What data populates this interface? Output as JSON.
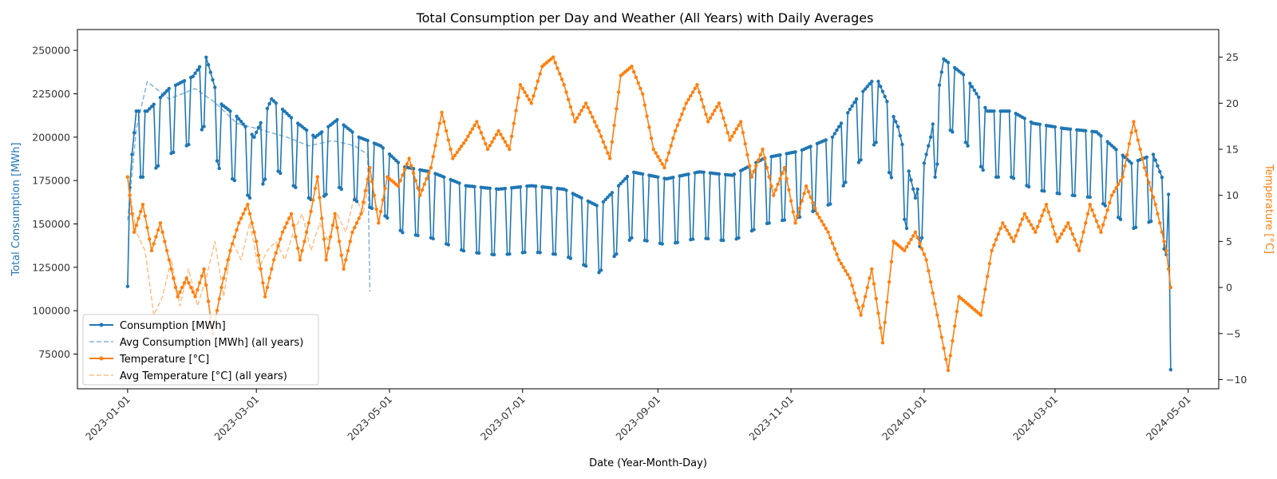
{
  "chart_data": {
    "type": "line",
    "title": "Total Consumption per Day and Weather (All Years) with Daily Averages",
    "xlabel": "Date (Year-Month-Day)",
    "ylabel_left": "Total Consumption [MWh]",
    "ylabel_right": "Temperature [°C]",
    "x_tick_labels": [
      "2023-01-01",
      "2023-03-01",
      "2023-05-01",
      "2023-07-01",
      "2023-09-01",
      "2023-11-01",
      "2024-01-01",
      "2024-03-01",
      "2024-05-01"
    ],
    "y_left_ticks": [
      "75000",
      "100000",
      "125000",
      "150000",
      "175000",
      "200000",
      "225000",
      "250000"
    ],
    "y_right_ticks": [
      "−10",
      "−5",
      "0",
      "5",
      "10",
      "15",
      "20",
      "25"
    ],
    "x_range": [
      "2022-12-09",
      "2024-05-15"
    ],
    "y_left_range": [
      55000,
      262000
    ],
    "y_right_range": [
      -11,
      28
    ],
    "colors": {
      "consumption": "#1f77b4",
      "temperature": "#ff7f0e"
    },
    "legend_position": "lower-left",
    "legend": [
      "Consumption [MWh]",
      "Avg Consumption [MWh] (all years)",
      "Temperature [°C]",
      "Avg Temperature [°C] (all years)"
    ],
    "start_date": "2023-01-01",
    "series": [
      {
        "name": "Consumption [MWh]",
        "axis": "left",
        "style": "solid-marker",
        "color": "#1f77b4",
        "anchors": [
          [
            "2023-01-01",
            152000
          ],
          [
            "2023-01-03",
            190000
          ],
          [
            "2023-01-05",
            215000
          ],
          [
            "2023-01-10",
            215000
          ],
          [
            "2023-01-20",
            228000
          ],
          [
            "2023-01-31",
            235000
          ],
          [
            "2023-02-06",
            246000
          ],
          [
            "2023-02-12",
            220000
          ],
          [
            "2023-02-20",
            212000
          ],
          [
            "2023-02-28",
            200000
          ],
          [
            "2023-03-08",
            222000
          ],
          [
            "2023-03-18",
            210000
          ],
          [
            "2023-03-28",
            200000
          ],
          [
            "2023-04-07",
            210000
          ],
          [
            "2023-04-17",
            200000
          ],
          [
            "2023-04-27",
            195000
          ],
          [
            "2023-05-07",
            183000
          ],
          [
            "2023-05-20",
            180000
          ],
          [
            "2023-06-05",
            172000
          ],
          [
            "2023-06-20",
            170000
          ],
          [
            "2023-07-05",
            172000
          ],
          [
            "2023-07-20",
            170000
          ],
          [
            "2023-08-05",
            160000
          ],
          [
            "2023-08-20",
            180000
          ],
          [
            "2023-09-05",
            176000
          ],
          [
            "2023-09-20",
            180000
          ],
          [
            "2023-10-05",
            178000
          ],
          [
            "2023-10-20",
            188000
          ],
          [
            "2023-11-05",
            192000
          ],
          [
            "2023-11-20",
            200000
          ],
          [
            "2023-12-01",
            222000
          ],
          [
            "2023-12-10",
            235000
          ],
          [
            "2023-12-20",
            206000
          ],
          [
            "2023-12-28",
            165000
          ],
          [
            "2024-01-04",
            200000
          ],
          [
            "2024-01-10",
            245000
          ],
          [
            "2024-01-20",
            235000
          ],
          [
            "2024-01-30",
            215000
          ],
          [
            "2024-02-10",
            215000
          ],
          [
            "2024-02-20",
            208000
          ],
          [
            "2024-03-05",
            205000
          ],
          [
            "2024-03-20",
            203000
          ],
          [
            "2024-04-05",
            185000
          ],
          [
            "2024-04-15",
            190000
          ],
          [
            "2024-04-22",
            167000
          ]
        ],
        "weekend_dip": [
          [
            0,
            8000
          ],
          [
            0,
            8000
          ],
          [
            0,
            12000
          ],
          [
            0,
            6000
          ],
          [
            0,
            4000
          ],
          [
            0,
            10000
          ],
          [
            0,
            0
          ]
        ],
        "end_point": [
          "2024-04-23",
          66000
        ]
      },
      {
        "name": "Avg Consumption [MWh] (all years)",
        "axis": "left",
        "style": "dashed",
        "color": "#1f77b4",
        "alpha": 0.55,
        "anchors": [
          [
            "2023-01-01",
            152000
          ],
          [
            "2023-01-05",
            205000
          ],
          [
            "2023-01-10",
            232000
          ],
          [
            "2023-01-20",
            222000
          ],
          [
            "2023-02-01",
            228000
          ],
          [
            "2023-02-10",
            220000
          ],
          [
            "2023-02-20",
            208000
          ],
          [
            "2023-03-01",
            205000
          ],
          [
            "2023-03-15",
            200000
          ],
          [
            "2023-03-25",
            195000
          ],
          [
            "2023-04-05",
            198000
          ],
          [
            "2023-04-15",
            195000
          ],
          [
            "2023-04-21",
            190000
          ]
        ],
        "end_point": [
          "2023-04-22",
          111000
        ]
      },
      {
        "name": "Temperature [°C]",
        "axis": "right",
        "style": "solid-marker",
        "color": "#ff7f0e",
        "points": [
          [
            "2023-01-01",
            12
          ],
          [
            "2023-01-04",
            6
          ],
          [
            "2023-01-08",
            9
          ],
          [
            "2023-01-12",
            4
          ],
          [
            "2023-01-16",
            7
          ],
          [
            "2023-01-20",
            3
          ],
          [
            "2023-01-24",
            -1
          ],
          [
            "2023-01-28",
            1
          ],
          [
            "2023-02-01",
            -1
          ],
          [
            "2023-02-05",
            2
          ],
          [
            "2023-02-09",
            -5
          ],
          [
            "2023-02-13",
            0
          ],
          [
            "2023-02-17",
            4
          ],
          [
            "2023-02-21",
            7
          ],
          [
            "2023-02-25",
            9
          ],
          [
            "2023-03-01",
            5
          ],
          [
            "2023-03-05",
            -1
          ],
          [
            "2023-03-09",
            3
          ],
          [
            "2023-03-13",
            6
          ],
          [
            "2023-03-17",
            8
          ],
          [
            "2023-03-21",
            3
          ],
          [
            "2023-03-25",
            7
          ],
          [
            "2023-03-29",
            12
          ],
          [
            "2023-04-02",
            3
          ],
          [
            "2023-04-06",
            8
          ],
          [
            "2023-04-10",
            2
          ],
          [
            "2023-04-14",
            6
          ],
          [
            "2023-04-18",
            8
          ],
          [
            "2023-04-22",
            13
          ],
          [
            "2023-04-26",
            7
          ],
          [
            "2023-04-30",
            12
          ],
          [
            "2023-05-05",
            11
          ],
          [
            "2023-05-10",
            14
          ],
          [
            "2023-05-15",
            10
          ],
          [
            "2023-05-20",
            13
          ],
          [
            "2023-05-25",
            19
          ],
          [
            "2023-05-30",
            14
          ],
          [
            "2023-06-05",
            16
          ],
          [
            "2023-06-10",
            18
          ],
          [
            "2023-06-15",
            15
          ],
          [
            "2023-06-20",
            17
          ],
          [
            "2023-06-25",
            15
          ],
          [
            "2023-06-30",
            22
          ],
          [
            "2023-07-05",
            20
          ],
          [
            "2023-07-10",
            24
          ],
          [
            "2023-07-15",
            25
          ],
          [
            "2023-07-20",
            22
          ],
          [
            "2023-07-25",
            18
          ],
          [
            "2023-07-30",
            20
          ],
          [
            "2023-08-05",
            17
          ],
          [
            "2023-08-10",
            14
          ],
          [
            "2023-08-15",
            23
          ],
          [
            "2023-08-20",
            24
          ],
          [
            "2023-08-25",
            21
          ],
          [
            "2023-08-30",
            15
          ],
          [
            "2023-09-04",
            13
          ],
          [
            "2023-09-09",
            17
          ],
          [
            "2023-09-14",
            20
          ],
          [
            "2023-09-19",
            22
          ],
          [
            "2023-09-24",
            18
          ],
          [
            "2023-09-29",
            20
          ],
          [
            "2023-10-04",
            16
          ],
          [
            "2023-10-09",
            18
          ],
          [
            "2023-10-14",
            12
          ],
          [
            "2023-10-19",
            15
          ],
          [
            "2023-10-24",
            10
          ],
          [
            "2023-10-29",
            13
          ],
          [
            "2023-11-03",
            7
          ],
          [
            "2023-11-08",
            11
          ],
          [
            "2023-11-13",
            8
          ],
          [
            "2023-11-18",
            6
          ],
          [
            "2023-11-23",
            3
          ],
          [
            "2023-11-28",
            1
          ],
          [
            "2023-12-03",
            -3
          ],
          [
            "2023-12-08",
            2
          ],
          [
            "2023-12-13",
            -6
          ],
          [
            "2023-12-18",
            5
          ],
          [
            "2023-12-23",
            4
          ],
          [
            "2023-12-28",
            6
          ],
          [
            "2024-01-02",
            3
          ],
          [
            "2024-01-07",
            -3
          ],
          [
            "2024-01-12",
            -9
          ],
          [
            "2024-01-17",
            -1
          ],
          [
            "2024-01-22",
            -2
          ],
          [
            "2024-01-27",
            -3
          ],
          [
            "2024-02-01",
            4
          ],
          [
            "2024-02-06",
            7
          ],
          [
            "2024-02-11",
            5
          ],
          [
            "2024-02-16",
            8
          ],
          [
            "2024-02-21",
            6
          ],
          [
            "2024-02-26",
            9
          ],
          [
            "2024-03-02",
            5
          ],
          [
            "2024-03-07",
            7
          ],
          [
            "2024-03-12",
            4
          ],
          [
            "2024-03-17",
            9
          ],
          [
            "2024-03-22",
            6
          ],
          [
            "2024-03-27",
            10
          ],
          [
            "2024-04-01",
            12
          ],
          [
            "2024-04-06",
            18
          ],
          [
            "2024-04-11",
            13
          ],
          [
            "2024-04-16",
            9
          ],
          [
            "2024-04-21",
            4
          ],
          [
            "2024-04-23",
            0
          ]
        ]
      },
      {
        "name": "Avg Temperature [°C] (all years)",
        "axis": "right",
        "style": "dashed",
        "color": "#ff7f0e",
        "alpha": 0.5,
        "points": [
          [
            "2023-01-01",
            12
          ],
          [
            "2023-01-05",
            6
          ],
          [
            "2023-01-09",
            4
          ],
          [
            "2023-01-13",
            -3
          ],
          [
            "2023-01-17",
            -1
          ],
          [
            "2023-01-21",
            3
          ],
          [
            "2023-01-25",
            -2
          ],
          [
            "2023-01-29",
            2
          ],
          [
            "2023-02-02",
            -2
          ],
          [
            "2023-02-06",
            1
          ],
          [
            "2023-02-10",
            5
          ],
          [
            "2023-02-14",
            -1
          ],
          [
            "2023-02-18",
            5
          ],
          [
            "2023-02-22",
            3
          ],
          [
            "2023-02-26",
            7
          ],
          [
            "2023-03-02",
            2
          ],
          [
            "2023-03-06",
            4
          ],
          [
            "2023-03-10",
            5
          ],
          [
            "2023-03-14",
            3
          ],
          [
            "2023-03-18",
            6
          ],
          [
            "2023-03-22",
            8
          ],
          [
            "2023-03-26",
            4
          ],
          [
            "2023-03-30",
            7
          ],
          [
            "2023-04-03",
            5
          ],
          [
            "2023-04-07",
            8
          ],
          [
            "2023-04-11",
            6
          ],
          [
            "2023-04-15",
            10
          ],
          [
            "2023-04-19",
            8
          ],
          [
            "2023-04-22",
            12
          ]
        ]
      }
    ]
  }
}
